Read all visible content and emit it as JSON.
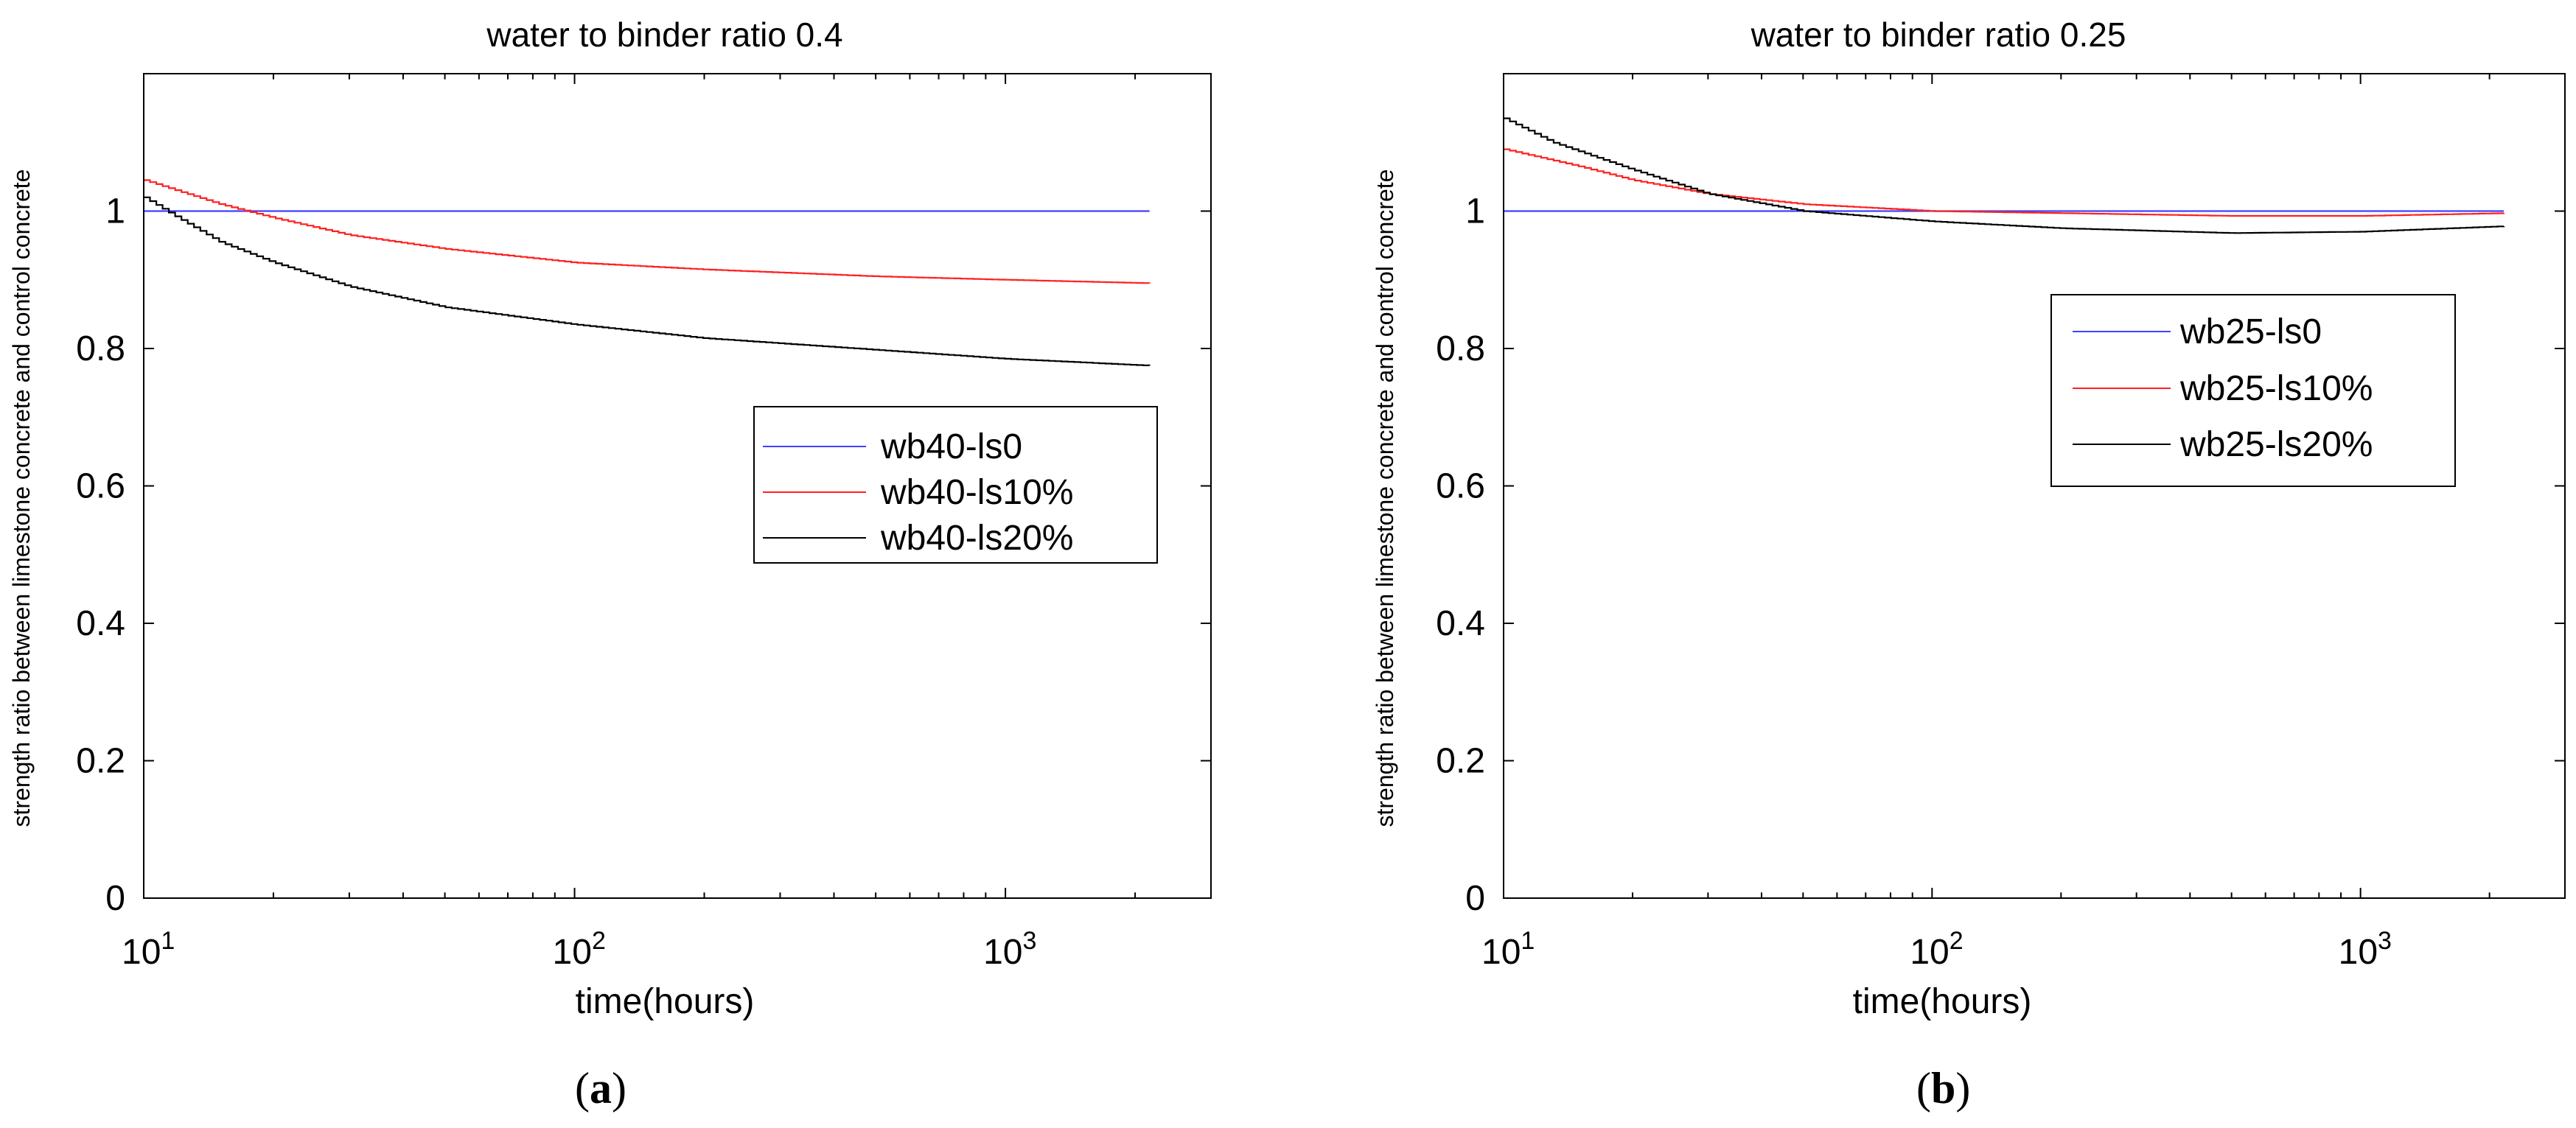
{
  "chart_data": [
    {
      "type": "line",
      "title": "water to binder ratio 0.4",
      "xlabel": "time(hours)",
      "ylabel": "strength ratio between limestone concrete and control concrete",
      "xscale": "log",
      "xlim": [
        10,
        3000
      ],
      "ylim": [
        0,
        1.2
      ],
      "xticks": [
        {
          "base": "10",
          "exp": "1"
        },
        {
          "base": "10",
          "exp": "2"
        },
        {
          "base": "10",
          "exp": "3"
        }
      ],
      "yticks": [
        "0",
        "0.2",
        "0.4",
        "0.6",
        "0.8",
        "1"
      ],
      "legend_position": "right-middle",
      "caption": {
        "open": "(",
        "letter": "a",
        "close": ")"
      },
      "series": [
        {
          "name": "wb40-ls0",
          "color": "#4040ff",
          "x": [
            10,
            2160
          ],
          "y": [
            1.0,
            1.0
          ]
        },
        {
          "name": "wb40-ls10%",
          "color": "#ff2020",
          "x": [
            10,
            15,
            20,
            30,
            50,
            100,
            200,
            500,
            1000,
            2160
          ],
          "y": [
            1.045,
            1.01,
            0.99,
            0.965,
            0.945,
            0.925,
            0.915,
            0.905,
            0.9,
            0.895
          ]
        },
        {
          "name": "wb40-ls20%",
          "color": "#000000",
          "x": [
            10,
            12,
            15,
            20,
            30,
            50,
            100,
            200,
            500,
            1000,
            2160
          ],
          "y": [
            1.02,
            0.99,
            0.955,
            0.925,
            0.89,
            0.86,
            0.835,
            0.815,
            0.798,
            0.785,
            0.775
          ]
        }
      ]
    },
    {
      "type": "line",
      "title": "water to binder ratio 0.25",
      "xlabel": "time(hours)",
      "ylabel": "strength ratio between limestone concrete and control concrete",
      "xscale": "log",
      "xlim": [
        10,
        3000
      ],
      "ylim": [
        0,
        1.2
      ],
      "xticks": [
        {
          "base": "10",
          "exp": "1"
        },
        {
          "base": "10",
          "exp": "2"
        },
        {
          "base": "10",
          "exp": "3"
        }
      ],
      "yticks": [
        "0",
        "0.2",
        "0.4",
        "0.6",
        "0.8",
        "1"
      ],
      "legend_position": "upper-right",
      "caption": {
        "open": "(",
        "letter": "b",
        "close": ")"
      },
      "series": [
        {
          "name": "wb25-ls0",
          "color": "#4040ff",
          "x": [
            10,
            2160
          ],
          "y": [
            1.0,
            1.0
          ]
        },
        {
          "name": "wb25-ls10%",
          "color": "#ff2020",
          "x": [
            10,
            15,
            20,
            30,
            50,
            100,
            200,
            500,
            1000,
            2160
          ],
          "y": [
            1.09,
            1.065,
            1.045,
            1.025,
            1.01,
            1.0,
            0.997,
            0.993,
            0.993,
            0.997
          ]
        },
        {
          "name": "wb25-ls20%",
          "color": "#000000",
          "x": [
            10,
            13,
            20,
            30,
            50,
            100,
            200,
            500,
            1000,
            2160
          ],
          "y": [
            1.135,
            1.1,
            1.06,
            1.025,
            1.0,
            0.985,
            0.975,
            0.968,
            0.97,
            0.978
          ]
        }
      ]
    }
  ]
}
